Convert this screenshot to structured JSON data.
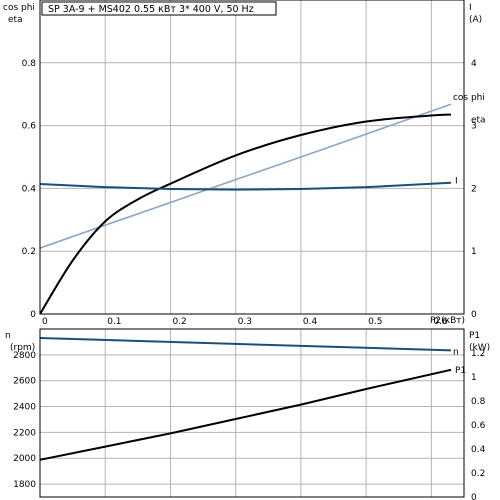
{
  "chart_data": [
    {
      "type": "line",
      "title": "SP 3A-9 + MS402    0.55 кВт   3* 400 V, 50 Hz",
      "xlabel": "P2(кВт)",
      "ylabel_left": [
        "cos phi",
        "eta"
      ],
      "ylabel_right": [
        "I",
        "(A)"
      ],
      "xlim": [
        0,
        0.65
      ],
      "ylim_left": [
        0,
        1.0
      ],
      "ylim_right": [
        0,
        5
      ],
      "x_ticks": [
        "0",
        "0.1",
        "0.2",
        "0.3",
        "0.4",
        "0.5",
        "0.6"
      ],
      "x_tick_values": [
        0,
        0.1,
        0.2,
        0.3,
        0.4,
        0.5,
        0.6
      ],
      "y_left_ticks": [
        "0",
        "0.2",
        "0.4",
        "0.6",
        "0.8"
      ],
      "y_left_tick_values": [
        0,
        0.2,
        0.4,
        0.6,
        0.8
      ],
      "y_right_ticks": [
        "0",
        "1",
        "2",
        "3",
        "4"
      ],
      "y_right_tick_values": [
        0,
        1,
        2,
        3,
        4
      ],
      "grid": true,
      "series": [
        {
          "name": "cos phi",
          "axis": "left",
          "color": "#8aa6c6",
          "x": [
            0,
            0.1,
            0.2,
            0.3,
            0.4,
            0.5,
            0.63
          ],
          "y": [
            0.21,
            0.283,
            0.355,
            0.428,
            0.5,
            0.573,
            0.668
          ]
        },
        {
          "name": "eta",
          "axis": "left",
          "color": "#000000",
          "x": [
            0,
            0.05,
            0.1,
            0.15,
            0.2,
            0.3,
            0.4,
            0.5,
            0.6,
            0.63
          ],
          "y": [
            0,
            0.17,
            0.295,
            0.365,
            0.415,
            0.505,
            0.57,
            0.613,
            0.632,
            0.635
          ]
        },
        {
          "name": "I",
          "axis": "right",
          "color": "#1a4f7a",
          "x": [
            0,
            0.1,
            0.2,
            0.3,
            0.4,
            0.5,
            0.63
          ],
          "y": [
            2.07,
            2.02,
            1.99,
            1.98,
            1.99,
            2.02,
            2.09
          ]
        }
      ]
    },
    {
      "type": "line",
      "xlim": [
        0,
        0.65
      ],
      "ylabel_left": [
        "n",
        "(rpm)"
      ],
      "ylabel_right": [
        "P1",
        "(kW)"
      ],
      "ylim_left": [
        1700,
        3000
      ],
      "ylim_right": [
        0,
        1.4
      ],
      "y_left_ticks": [
        "1800",
        "2000",
        "2200",
        "2400",
        "2600",
        "2800"
      ],
      "y_left_tick_values": [
        1800,
        2000,
        2200,
        2400,
        2600,
        2800
      ],
      "y_right_ticks": [
        "0",
        "0.2",
        "0.4",
        "0.6",
        "0.8",
        "1",
        "1.2"
      ],
      "y_right_tick_values": [
        0,
        0.2,
        0.4,
        0.6,
        0.8,
        1.0,
        1.2
      ],
      "grid": true,
      "series": [
        {
          "name": "n",
          "axis": "left",
          "color": "#1a4f7a",
          "x": [
            0,
            0.63
          ],
          "y": [
            2930,
            2835
          ]
        },
        {
          "name": "P1",
          "axis": "right",
          "color": "#000000",
          "x": [
            0,
            0.1,
            0.2,
            0.3,
            0.4,
            0.5,
            0.63
          ],
          "y": [
            0.31,
            0.42,
            0.53,
            0.65,
            0.77,
            0.9,
            1.06
          ]
        }
      ]
    }
  ]
}
